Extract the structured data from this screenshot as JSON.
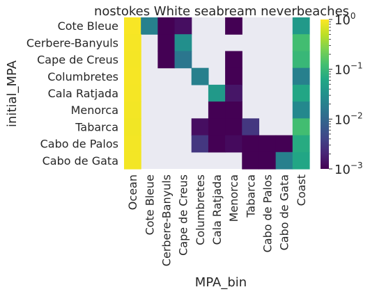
{
  "chart_data": {
    "type": "heatmap",
    "title": "nostokes White seabream neverbeaches",
    "xlabel": "MPA_bin",
    "ylabel": "initial_MPA",
    "rows": [
      "Cote Bleue",
      "Cerbere-Banyuls",
      "Cape de Creus",
      "Columbretes",
      "Cala Ratjada",
      "Menorca",
      "Tabarca",
      "Cabo de Palos",
      "Cabo de Gata"
    ],
    "columns": [
      "Ocean",
      "Cote Bleue",
      "Cerbere-Banyuls",
      "Cape de Creus",
      "Columbretes",
      "Cala Ratjada",
      "Menorca",
      "Tabarca",
      "Cabo de Palos",
      "Cabo de Gata",
      "Coast"
    ],
    "values": [
      [
        0.95,
        0.02,
        0.001,
        0.0013,
        null,
        null,
        0.001,
        null,
        null,
        null,
        0.04
      ],
      [
        0.93,
        null,
        0.001,
        0.03,
        null,
        null,
        null,
        null,
        null,
        null,
        0.12
      ],
      [
        0.92,
        null,
        0.001,
        0.015,
        null,
        null,
        0.001,
        null,
        null,
        null,
        0.1
      ],
      [
        0.93,
        null,
        null,
        null,
        0.02,
        null,
        0.001,
        null,
        null,
        null,
        0.02
      ],
      [
        0.92,
        null,
        null,
        null,
        null,
        0.04,
        0.0015,
        null,
        null,
        null,
        0.06
      ],
      [
        0.9,
        null,
        null,
        null,
        null,
        0.001,
        0.001,
        null,
        null,
        null,
        0.025
      ],
      [
        0.88,
        null,
        null,
        null,
        0.0013,
        0.001,
        0.001,
        0.003,
        null,
        null,
        0.12
      ],
      [
        0.9,
        null,
        null,
        null,
        0.003,
        0.001,
        0.0012,
        0.001,
        0.001,
        0.001,
        0.07
      ],
      [
        0.9,
        null,
        null,
        null,
        null,
        null,
        null,
        0.001,
        0.001,
        0.02,
        0.06
      ]
    ],
    "colormap": "viridis",
    "color_scale": "log",
    "vmin": 0.001,
    "vmax": 1,
    "colorbar_ticks": [
      {
        "value": 1,
        "base": "10",
        "exp": "0"
      },
      {
        "value": 0.1,
        "base": "10",
        "exp": "−1"
      },
      {
        "value": 0.01,
        "base": "10",
        "exp": "−2"
      },
      {
        "value": 0.001,
        "base": "10",
        "exp": "−3"
      }
    ],
    "missing_color": "#eaeaf2"
  }
}
